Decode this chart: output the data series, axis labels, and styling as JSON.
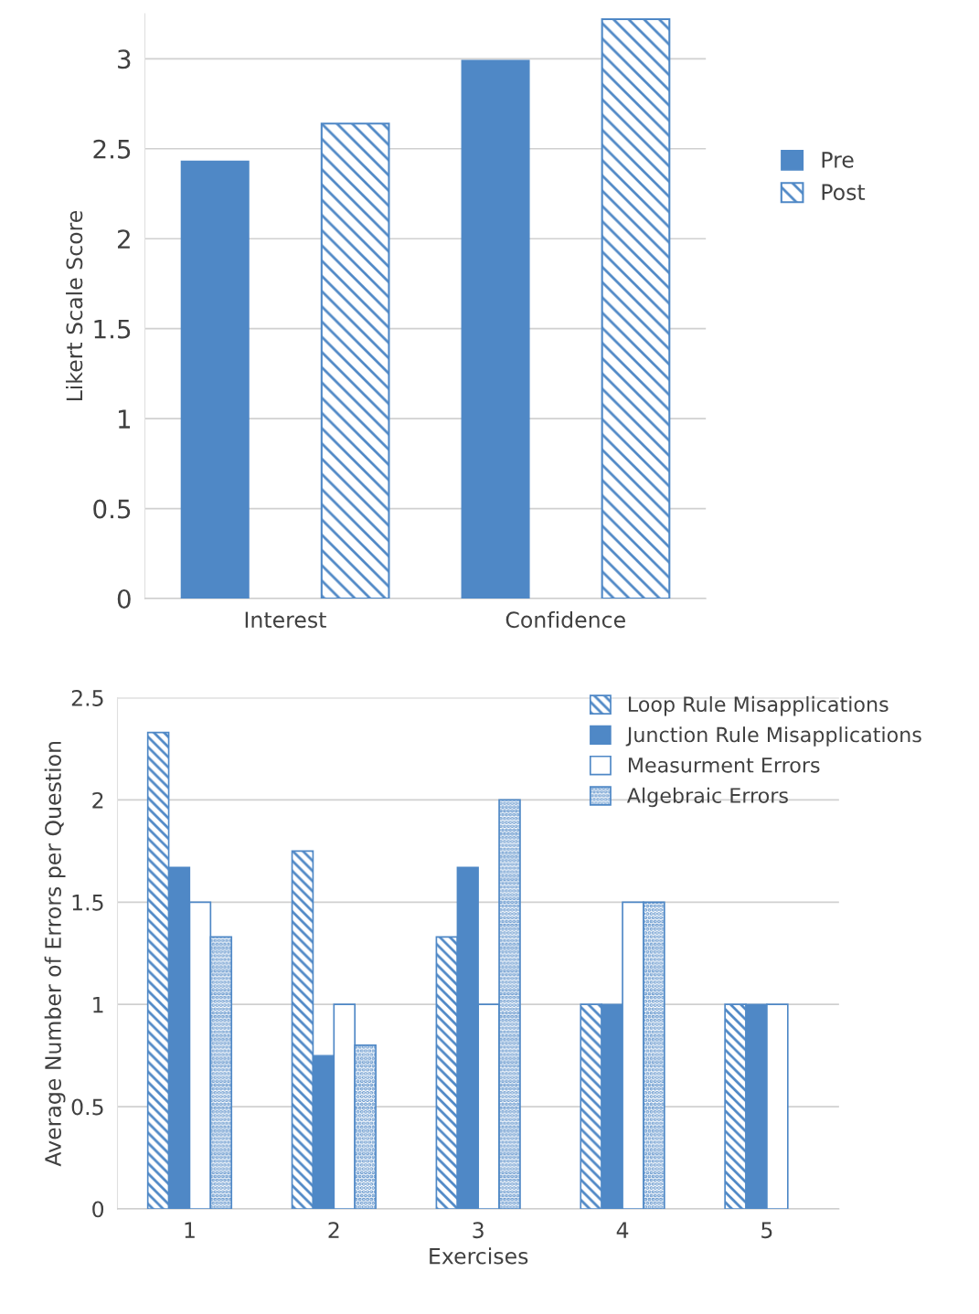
{
  "chart_data": [
    {
      "type": "bar",
      "ylabel": "Likert Scale Score",
      "categories": [
        "Interest",
        "Confidence"
      ],
      "series": [
        {
          "name": "Pre",
          "color": "#4f88c6",
          "values": [
            2.43,
            2.99
          ]
        },
        {
          "name": "Post",
          "color": "#4f88c6",
          "values": [
            2.64,
            3.22
          ]
        }
      ],
      "ylim": [
        0,
        3.25
      ],
      "yticks": [
        0,
        {
          "value": 0.5,
          "label": "0.5"
        },
        1,
        {
          "value": 1.5,
          "label": "1.5"
        },
        2,
        {
          "value": 2.5,
          "label": "2.5"
        },
        3
      ],
      "grid": "y",
      "legend": "right"
    },
    {
      "type": "bar",
      "xlabel": "Exercises",
      "ylabel": "Average Number of Errors per Question",
      "categories": [
        "1",
        "2",
        "3",
        "4",
        "5"
      ],
      "series": [
        {
          "name": "Loop Rule Misapplications",
          "color": "#4f88c6",
          "values": [
            2.33,
            1.75,
            1.33,
            1.0,
            1.0
          ]
        },
        {
          "name": "Junction Rule Misapplications",
          "color": "#4f88c6",
          "values": [
            1.67,
            0.75,
            1.67,
            1.0,
            1.0
          ]
        },
        {
          "name": "Measurment Errors",
          "color": "#4f88c6",
          "values": [
            1.5,
            1.0,
            1.0,
            1.5,
            1.0
          ]
        },
        {
          "name": "Algebraic Errors",
          "color": "#4f88c6",
          "values": [
            1.33,
            0.8,
            2.0,
            1.5,
            null
          ]
        }
      ],
      "ylim": [
        0,
        2.5
      ],
      "yticks": [
        0,
        {
          "value": 0.5,
          "label": "0.5"
        },
        1,
        {
          "value": 1.5,
          "label": "1.5"
        },
        2,
        {
          "value": 2.5,
          "label": "2.5"
        }
      ],
      "grid": "y",
      "legend": "top right"
    }
  ]
}
